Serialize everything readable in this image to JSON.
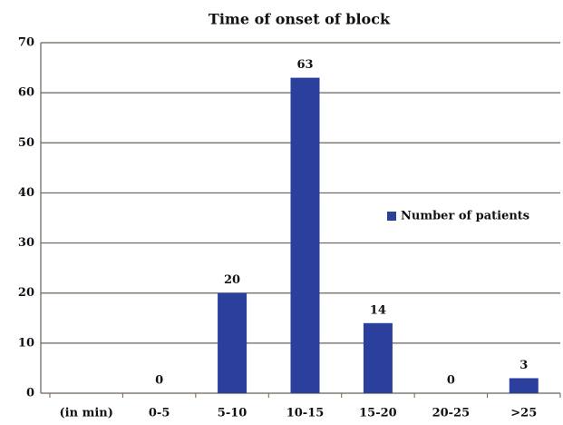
{
  "chart_data": {
    "type": "bar",
    "title": "Time of onset of block",
    "categories": [
      "(in min)",
      "0-5",
      "5-10",
      "10-15",
      "15-20",
      "20-25",
      ">25"
    ],
    "series": [
      {
        "name": "Number of patients",
        "color": "#2b3f9c",
        "values": [
          null,
          0,
          20,
          63,
          14,
          0,
          3
        ]
      }
    ],
    "ylim": [
      0,
      70
    ],
    "yticks": [
      0,
      10,
      20,
      30,
      40,
      50,
      60,
      70
    ],
    "grid": true,
    "legend": "right"
  }
}
